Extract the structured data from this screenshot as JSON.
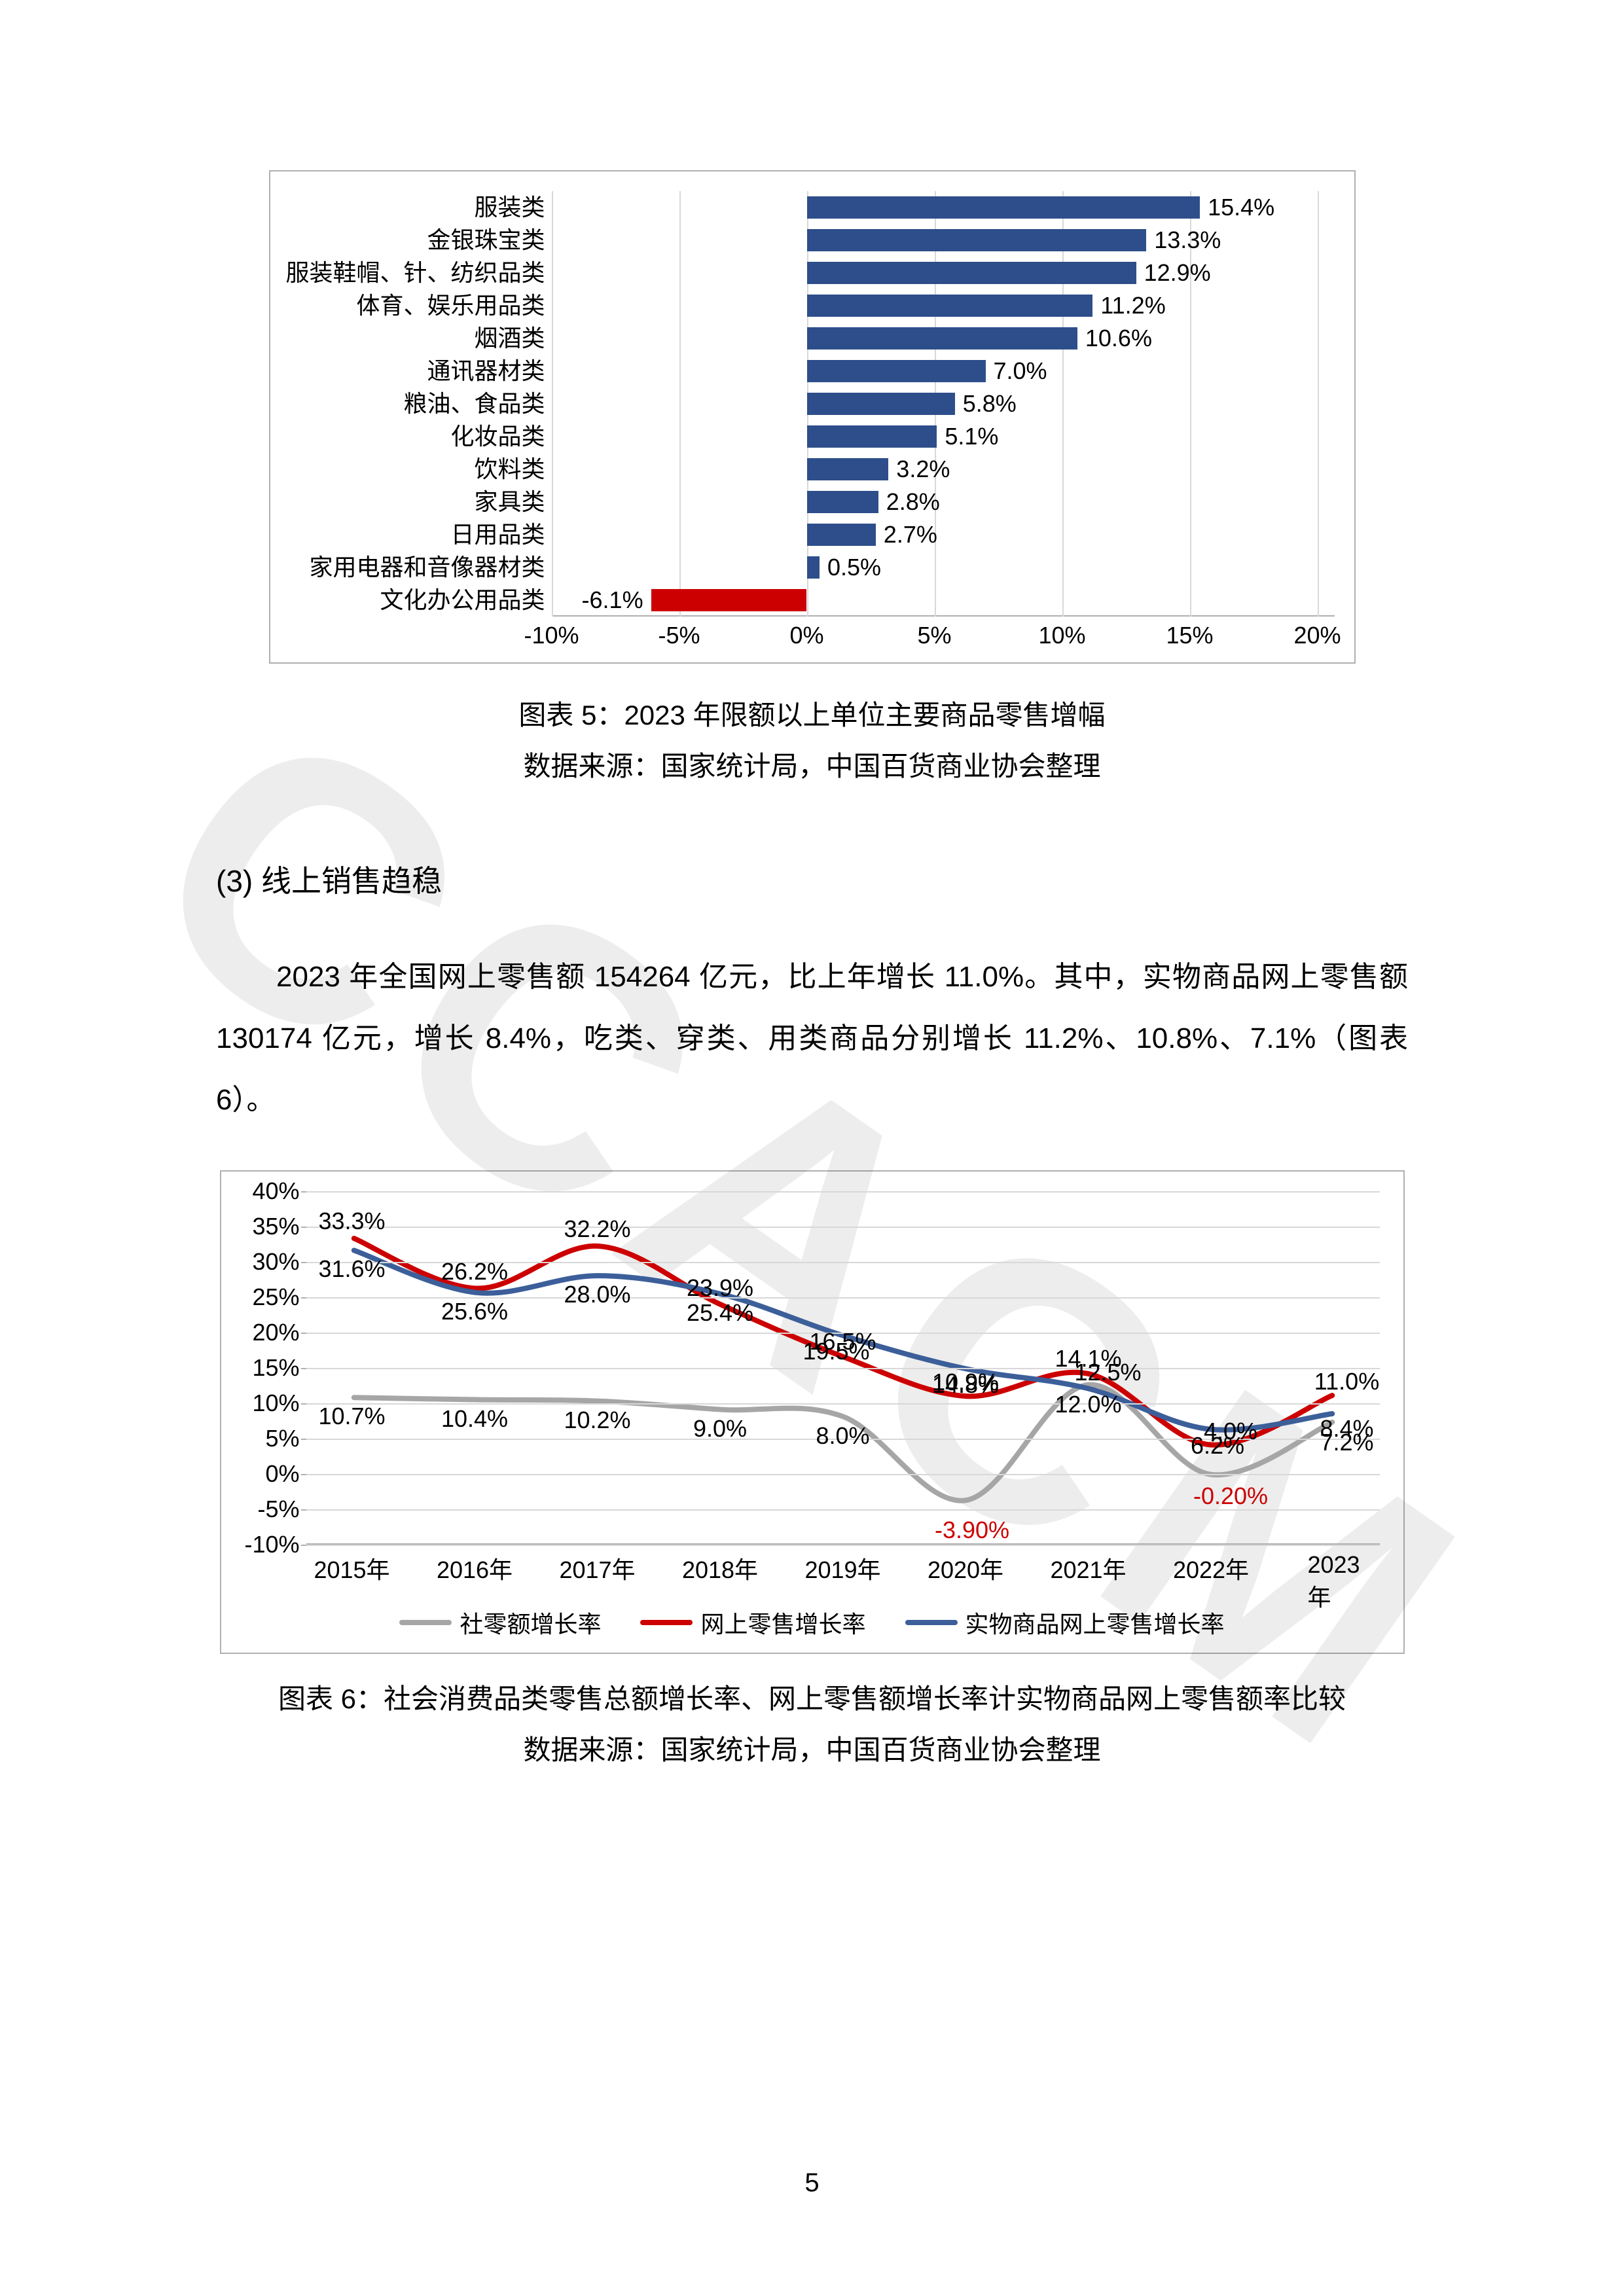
{
  "watermark": "CCACM",
  "page_number": "5",
  "chart5": {
    "type": "bar-horizontal",
    "caption_line1": "图表 5：2023 年限额以上单位主要商品零售增幅",
    "caption_line2": "数据来源：国家统计局，中国百货商业协会整理",
    "bar_color_pos": "#2d4e8a",
    "bar_color_neg": "#cc0000",
    "grid_color": "#d8d8d8",
    "text_color": "#000000",
    "xmin": -10,
    "xmax": 20,
    "xticks": [
      {
        "v": -10,
        "label": "-10%"
      },
      {
        "v": -5,
        "label": "-5%"
      },
      {
        "v": 0,
        "label": "0%"
      },
      {
        "v": 5,
        "label": "5%"
      },
      {
        "v": 10,
        "label": "10%"
      },
      {
        "v": 15,
        "label": "15%"
      },
      {
        "v": 20,
        "label": "20%"
      }
    ],
    "rows": [
      {
        "label": "服装类",
        "value": 15.4,
        "text": "15.4%"
      },
      {
        "label": "金银珠宝类",
        "value": 13.3,
        "text": "13.3%"
      },
      {
        "label": "服装鞋帽、针、纺织品类",
        "value": 12.9,
        "text": "12.9%"
      },
      {
        "label": "体育、娱乐用品类",
        "value": 11.2,
        "text": "11.2%"
      },
      {
        "label": "烟酒类",
        "value": 10.6,
        "text": "10.6%"
      },
      {
        "label": "通讯器材类",
        "value": 7.0,
        "text": "7.0%"
      },
      {
        "label": "粮油、食品类",
        "value": 5.8,
        "text": "5.8%"
      },
      {
        "label": "化妆品类",
        "value": 5.1,
        "text": "5.1%"
      },
      {
        "label": "饮料类",
        "value": 3.2,
        "text": "3.2%"
      },
      {
        "label": "家具类",
        "value": 2.8,
        "text": "2.8%"
      },
      {
        "label": "日用品类",
        "value": 2.7,
        "text": "2.7%"
      },
      {
        "label": "家用电器和音像器材类",
        "value": 0.5,
        "text": "0.5%"
      },
      {
        "label": "文化办公用品类",
        "value": -6.1,
        "text": "-6.1%"
      }
    ]
  },
  "section3": {
    "title": "(3)  线上销售趋稳",
    "body": "2023 年全国网上零售额 154264 亿元，比上年增长 11.0%。其中，实物商品网上零售额 130174 亿元，增长 8.4%，吃类、穿类、用类商品分别增长 11.2%、10.8%、7.1%（图表 6）。"
  },
  "chart6": {
    "type": "line",
    "caption_line1": "图表 6：社会消费品类零售总额增长率、网上零售额增长率计实物商品网上零售额率比较",
    "caption_line2": "数据来源：国家统计局，中国百货商业协会整理",
    "grid_color": "#d8d8d8",
    "ymin": -10,
    "ymax": 40,
    "yticks": [
      {
        "v": 40,
        "label": "40%"
      },
      {
        "v": 35,
        "label": "35%"
      },
      {
        "v": 30,
        "label": "30%"
      },
      {
        "v": 25,
        "label": "25%"
      },
      {
        "v": 20,
        "label": "20%"
      },
      {
        "v": 15,
        "label": "15%"
      },
      {
        "v": 10,
        "label": "10%"
      },
      {
        "v": 5,
        "label": "5%"
      },
      {
        "v": 0,
        "label": "0%"
      },
      {
        "v": -5,
        "label": "-5%"
      },
      {
        "v": -10,
        "label": "-10%"
      }
    ],
    "xcats": [
      "2015年",
      "2016年",
      "2017年",
      "2018年",
      "2019年",
      "2020年",
      "2021年",
      "2022年",
      "2023年"
    ],
    "series": [
      {
        "name": "社零额增长率",
        "color": "#a6a6a6",
        "values": [
          10.7,
          10.4,
          10.2,
          9.0,
          8.0,
          -3.9,
          12.5,
          -0.2,
          7.2
        ],
        "labels": [
          "10.7%",
          "10.4%",
          "10.2%",
          "9.0%",
          "8.0%",
          "-3.90%",
          "12.5%",
          "-0.20%",
          "7.2%"
        ],
        "label_dy": [
          28,
          28,
          28,
          28,
          28,
          44,
          -20,
          32,
          30
        ],
        "label_dx": [
          0,
          0,
          0,
          0,
          0,
          10,
          30,
          30,
          20
        ],
        "label_colors": [
          "#000",
          "#000",
          "#000",
          "#000",
          "#000",
          "#cc0000",
          "#000",
          "#cc0000",
          "#000"
        ]
      },
      {
        "name": "网上零售增长率",
        "color": "#cc0000",
        "values": [
          33.3,
          26.2,
          32.2,
          23.9,
          16.5,
          10.9,
          14.1,
          4.0,
          11.0
        ],
        "labels": [
          "33.3%",
          "26.2%",
          "32.2%",
          "23.9%",
          "16.5%",
          "10.9%",
          "14.1%",
          "4.0%",
          "11.0%"
        ],
        "label_dy": [
          -26,
          -26,
          -26,
          -26,
          -24,
          -22,
          -24,
          -22,
          -22
        ],
        "label_dx": [
          0,
          0,
          0,
          0,
          0,
          0,
          0,
          30,
          20
        ],
        "label_colors": [
          "#000",
          "#000",
          "#000",
          "#000",
          "#000",
          "#000",
          "#000",
          "#000",
          "#000"
        ]
      },
      {
        "name": "实物商品网上零售增长率",
        "color": "#3c5f9a",
        "values": [
          31.6,
          25.6,
          28.0,
          25.4,
          19.5,
          14.8,
          12.0,
          6.2,
          8.4
        ],
        "labels": [
          "31.6%",
          "25.6%",
          "28.0%",
          "25.4%",
          "19.5%",
          "14.8%",
          "12.0%",
          "6.2%",
          "8.4%"
        ],
        "label_dy": [
          28,
          28,
          28,
          28,
          24,
          24,
          24,
          24,
          22
        ],
        "label_dx": [
          0,
          0,
          0,
          0,
          -10,
          0,
          0,
          10,
          20
        ],
        "label_colors": [
          "#000",
          "#000",
          "#000",
          "#000",
          "#000",
          "#000",
          "#000",
          "#000",
          "#000"
        ]
      }
    ],
    "legend": [
      {
        "label": "社零额增长率",
        "color": "#a6a6a6"
      },
      {
        "label": "网上零售增长率",
        "color": "#cc0000"
      },
      {
        "label": "实物商品网上零售增长率",
        "color": "#3c5f9a"
      }
    ]
  }
}
